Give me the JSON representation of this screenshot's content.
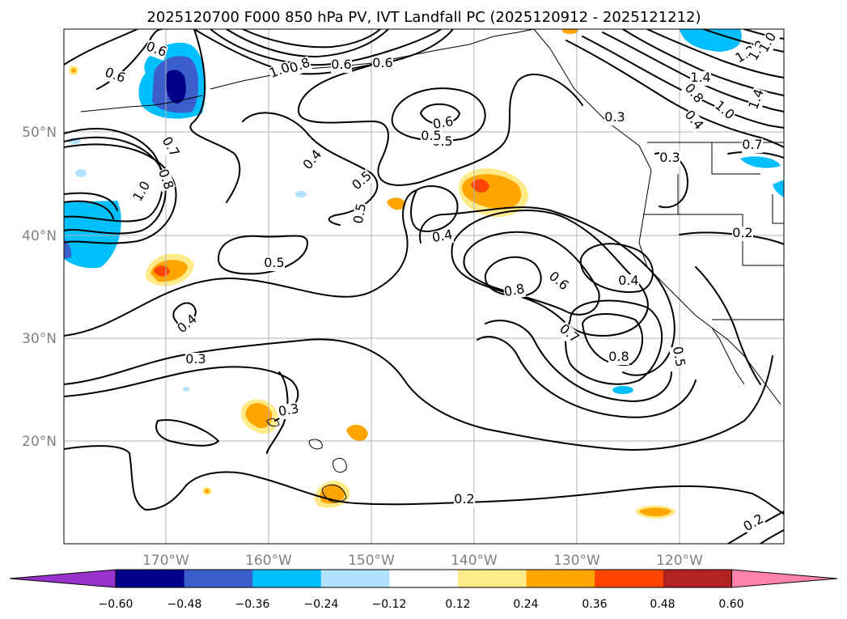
{
  "title": "2025120700 F000 850 hPa PV, IVT Landfall PC (2025120912 - 2025121212)",
  "lat_labels": [
    "50°N",
    "40°N",
    "30°N",
    "20°N"
  ],
  "lon_labels": [
    "170°W",
    "160°W",
    "150°W",
    "140°W",
    "130°W",
    "120°W"
  ],
  "colorbar": {
    "ticks": [
      "−0.60",
      "−0.48",
      "−0.36",
      "−0.24",
      "−0.12",
      "0.12",
      "0.24",
      "0.36",
      "0.48",
      "0.60"
    ],
    "colors": [
      "#9932cc",
      "#00008b",
      "#3a5fcd",
      "#00bfff",
      "#b0e2ff",
      "#ffffff",
      "#ffeb8a",
      "#ffa500",
      "#ff4500",
      "#b22222",
      "#ff82ab"
    ]
  },
  "contour_labels": [
    "0.6",
    "0.6",
    "0.7",
    "0.8",
    "1.0",
    "0.6",
    "0.8",
    "1.0",
    "0.6",
    "0.5",
    "0.6",
    "0.5",
    "0.4",
    "0.5",
    "0.5",
    "0.4",
    "0.5",
    "0.4",
    "0.3",
    "0.3",
    "0.2",
    "0.2",
    "0.8",
    "0.6",
    "0.4",
    "0.7",
    "0.8",
    "0.5",
    "1.2",
    "1.4",
    "1.0",
    "0.8",
    "0.4",
    "1.4",
    "1.2",
    "0.3",
    "1.0",
    "0.7",
    "0.2",
    "0.3"
  ]
}
